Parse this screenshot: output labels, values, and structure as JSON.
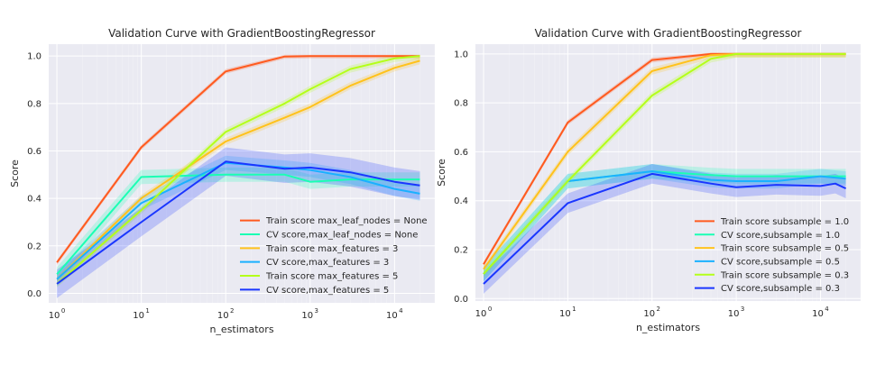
{
  "chart_data": [
    {
      "type": "line",
      "title": "Validation Curve with GradientBoostingRegressor",
      "xlabel": "n_estimators",
      "ylabel": "Score",
      "xscale": "log",
      "xlim": [
        0.8,
        30000
      ],
      "ylim": [
        -0.04,
        1.05
      ],
      "xtick_labels": [
        "10",
        "10",
        "10",
        "10",
        "10"
      ],
      "xtick_exponents": [
        "0",
        "1",
        "2",
        "3",
        "4"
      ],
      "ytick_labels": [
        "0.0",
        "0.2",
        "0.4",
        "0.6",
        "0.8",
        "1.0"
      ],
      "grid": true,
      "legend_position": "lower-right",
      "series": [
        {
          "name": "Train score max_leaf_nodes = None",
          "color": "#ff5a1f",
          "band": 0.01,
          "points": [
            [
              1,
              0.13
            ],
            [
              10,
              0.615
            ],
            [
              100,
              0.935
            ],
            [
              500,
              0.998
            ],
            [
              1000,
              1.0
            ],
            [
              20000,
              1.0
            ]
          ]
        },
        {
          "name": "CV score,max_leaf_nodes = None",
          "color": "#1affb4",
          "band": 0.03,
          "points": [
            [
              1,
              0.08
            ],
            [
              10,
              0.49
            ],
            [
              100,
              0.5
            ],
            [
              500,
              0.5
            ],
            [
              1000,
              0.47
            ],
            [
              3000,
              0.48
            ],
            [
              10000,
              0.48
            ],
            [
              20000,
              0.48
            ]
          ]
        },
        {
          "name": "Train score max_features = 3",
          "color": "#ffc21c",
          "band": 0.015,
          "points": [
            [
              1,
              0.06
            ],
            [
              10,
              0.4
            ],
            [
              100,
              0.64
            ],
            [
              500,
              0.74
            ],
            [
              1000,
              0.785
            ],
            [
              3000,
              0.875
            ],
            [
              10000,
              0.95
            ],
            [
              20000,
              0.98
            ]
          ]
        },
        {
          "name": "CV score,max_features = 3",
          "color": "#1ab1ff",
          "band": 0.03,
          "points": [
            [
              1,
              0.06
            ],
            [
              10,
              0.38
            ],
            [
              100,
              0.55
            ],
            [
              500,
              0.53
            ],
            [
              1000,
              0.52
            ],
            [
              3000,
              0.49
            ],
            [
              10000,
              0.44
            ],
            [
              20000,
              0.42
            ]
          ]
        },
        {
          "name": "Train score max_features = 5",
          "color": "#b4ff1a",
          "band": 0.015,
          "points": [
            [
              1,
              0.04
            ],
            [
              10,
              0.35
            ],
            [
              100,
              0.68
            ],
            [
              500,
              0.8
            ],
            [
              1000,
              0.86
            ],
            [
              3000,
              0.945
            ],
            [
              10000,
              0.99
            ],
            [
              20000,
              1.0
            ]
          ]
        },
        {
          "name": "CV score,max_features = 5",
          "color": "#1a36ff",
          "band": 0.06,
          "points": [
            [
              1,
              0.04
            ],
            [
              10,
              0.3
            ],
            [
              100,
              0.555
            ],
            [
              500,
              0.525
            ],
            [
              1000,
              0.53
            ],
            [
              3000,
              0.51
            ],
            [
              10000,
              0.47
            ],
            [
              20000,
              0.455
            ]
          ]
        }
      ]
    },
    {
      "type": "line",
      "title": "Validation Curve with GradientBoostingRegressor",
      "xlabel": "n_estimators",
      "ylabel": "Score",
      "xscale": "log",
      "xlim": [
        0.8,
        30000
      ],
      "ylim": [
        -0.01,
        1.04
      ],
      "xtick_labels": [
        "10",
        "10",
        "10",
        "10",
        "10"
      ],
      "xtick_exponents": [
        "0",
        "1",
        "2",
        "3",
        "4"
      ],
      "ytick_labels": [
        "0.0",
        "0.2",
        "0.4",
        "0.6",
        "0.8",
        "1.0"
      ],
      "grid": true,
      "legend_position": "lower-right",
      "series": [
        {
          "name": "Train score subsample = 1.0",
          "color": "#ff5a1f",
          "band": 0.01,
          "points": [
            [
              1,
              0.14
            ],
            [
              10,
              0.72
            ],
            [
              100,
              0.975
            ],
            [
              500,
              1.0
            ],
            [
              1000,
              1.0
            ],
            [
              20000,
              1.0
            ]
          ]
        },
        {
          "name": "CV score,subsample = 1.0",
          "color": "#1affb4",
          "band": 0.03,
          "points": [
            [
              1,
              0.1
            ],
            [
              10,
              0.48
            ],
            [
              100,
              0.52
            ],
            [
              500,
              0.505
            ],
            [
              1000,
              0.5
            ],
            [
              3000,
              0.5
            ],
            [
              10000,
              0.5
            ],
            [
              20000,
              0.5
            ]
          ]
        },
        {
          "name": "Train score subsample = 0.5",
          "color": "#ffc21c",
          "band": 0.015,
          "points": [
            [
              1,
              0.12
            ],
            [
              10,
              0.6
            ],
            [
              100,
              0.93
            ],
            [
              500,
              0.995
            ],
            [
              1000,
              1.0
            ],
            [
              20000,
              1.0
            ]
          ]
        },
        {
          "name": "CV score,subsample = 0.5",
          "color": "#1ab1ff",
          "band": 0.03,
          "points": [
            [
              1,
              0.1
            ],
            [
              10,
              0.48
            ],
            [
              100,
              0.52
            ],
            [
              500,
              0.485
            ],
            [
              1000,
              0.48
            ],
            [
              3000,
              0.48
            ],
            [
              10000,
              0.5
            ],
            [
              20000,
              0.49
            ]
          ]
        },
        {
          "name": "Train score subsample = 0.3",
          "color": "#b4ff1a",
          "band": 0.015,
          "points": [
            [
              1,
              0.1
            ],
            [
              10,
              0.48
            ],
            [
              100,
              0.83
            ],
            [
              500,
              0.98
            ],
            [
              1000,
              1.0
            ],
            [
              20000,
              1.0
            ]
          ]
        },
        {
          "name": "CV score,subsample = 0.3",
          "color": "#1a36ff",
          "band": 0.04,
          "points": [
            [
              1,
              0.06
            ],
            [
              10,
              0.39
            ],
            [
              100,
              0.51
            ],
            [
              500,
              0.47
            ],
            [
              1000,
              0.455
            ],
            [
              3000,
              0.465
            ],
            [
              10000,
              0.46
            ],
            [
              15000,
              0.47
            ],
            [
              20000,
              0.45
            ]
          ]
        }
      ]
    }
  ]
}
